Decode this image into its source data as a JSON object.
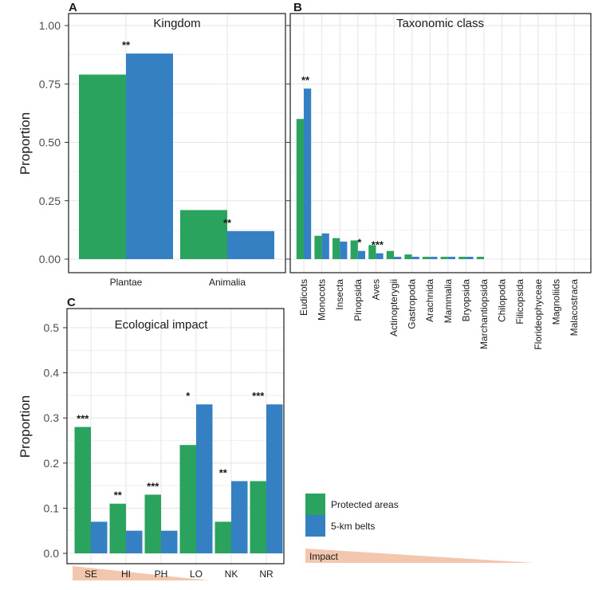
{
  "colors": {
    "protected": "#2aa35e",
    "belt": "#3580c3",
    "grid": "#e6e6e6",
    "frame": "#1a1a1a",
    "wedge": "#f2c7ae"
  },
  "legend": {
    "protected_label": "Protected areas",
    "belt_label": "5-km belts",
    "impact_label": "Impact"
  },
  "chart_data": [
    {
      "panel": "A",
      "type": "bar",
      "title": "Kingdom",
      "ylabel": "Proportion",
      "ylim": [
        0,
        1.05
      ],
      "yticks": [
        "0.00",
        "0.25",
        "0.50",
        "0.75",
        "1.00"
      ],
      "categories": [
        "Plantae",
        "Animalia"
      ],
      "series": [
        {
          "name": "Protected areas",
          "values": [
            0.79,
            0.21
          ]
        },
        {
          "name": "5-km belts",
          "values": [
            0.88,
            0.12
          ]
        }
      ],
      "significance": [
        "**",
        "**"
      ]
    },
    {
      "panel": "B",
      "type": "bar",
      "title": "Taxonomic class",
      "ylim": [
        0,
        1.05
      ],
      "categories": [
        "Eudicots",
        "Monocots",
        "Insecta",
        "Pinopsida",
        "Aves",
        "Actinopterygii",
        "Gastropoda",
        "Arachnida",
        "Mammalia",
        "Bryopsida",
        "Marchantiopsida",
        "Chilopoda",
        "Filicopsida",
        "Florideophyceae",
        "Magnoliids",
        "Malacostraca"
      ],
      "series": [
        {
          "name": "Protected areas",
          "values": [
            0.6,
            0.1,
            0.09,
            0.08,
            0.06,
            0.035,
            0.02,
            0.01,
            0.01,
            0.01,
            0.01,
            0.0,
            0.0,
            0.0,
            0.0,
            0.0
          ]
        },
        {
          "name": "5-km belts",
          "values": [
            0.73,
            0.11,
            0.075,
            0.035,
            0.025,
            0.01,
            0.01,
            0.01,
            0.01,
            0.01,
            0.0,
            0.0,
            0.0,
            0.0,
            0.0,
            0.0
          ]
        }
      ],
      "significance": [
        "**",
        "",
        "",
        "*",
        "***",
        "",
        "",
        "",
        "",
        "",
        "",
        "",
        "",
        "",
        "",
        ""
      ]
    },
    {
      "panel": "C",
      "type": "bar",
      "title": "Ecological impact",
      "ylabel": "Proportion",
      "ylim": [
        0,
        0.52
      ],
      "yticks": [
        "0.0",
        "0.1",
        "0.2",
        "0.3",
        "0.4",
        "0.5"
      ],
      "categories": [
        "SE",
        "HI",
        "PH",
        "LO",
        "NK",
        "NR"
      ],
      "series": [
        {
          "name": "Protected areas",
          "values": [
            0.28,
            0.11,
            0.13,
            0.24,
            0.07,
            0.16
          ]
        },
        {
          "name": "5-km belts",
          "values": [
            0.07,
            0.05,
            0.05,
            0.33,
            0.16,
            0.33
          ]
        }
      ],
      "significance": [
        "***",
        "**",
        "***",
        "*",
        "**",
        "***"
      ]
    }
  ]
}
